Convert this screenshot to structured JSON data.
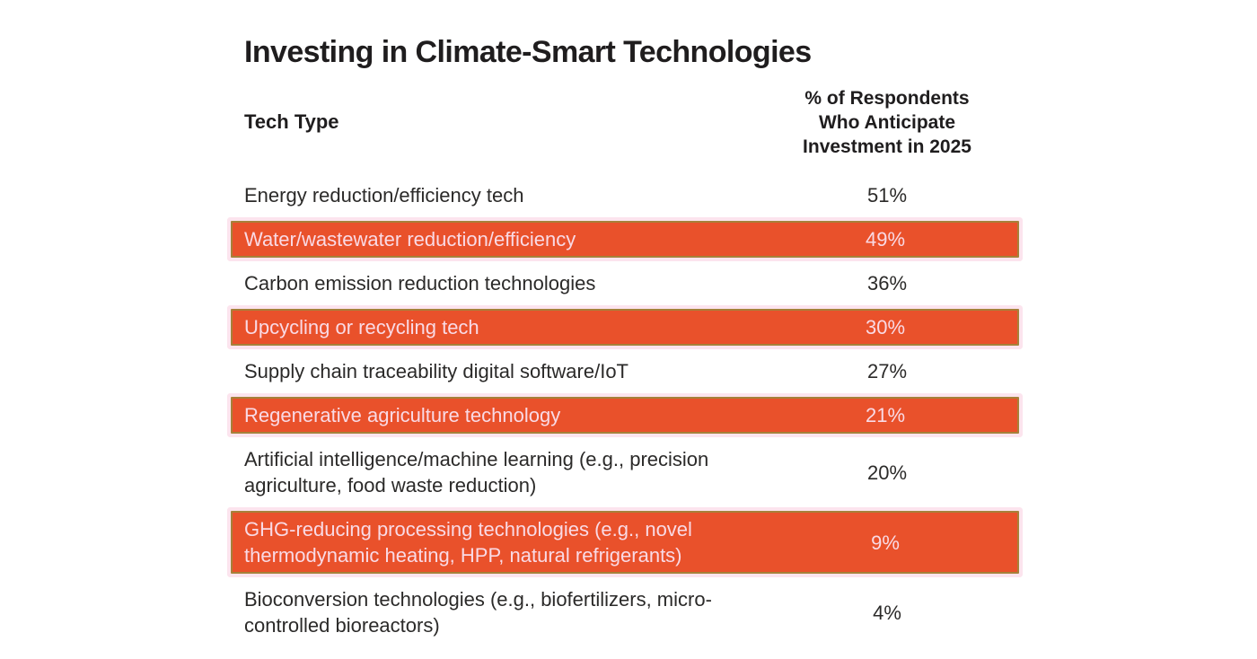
{
  "title": "Investing in Climate-Smart Technologies",
  "table": {
    "col1_header": "Tech Type",
    "col2_header": "% of Respondents\nWho Anticipate\nInvestment in 2025",
    "rows": [
      {
        "tech": "Energy reduction/efficiency tech",
        "pct": "51%"
      },
      {
        "tech": "Water/wastewater reduction/efficiency",
        "pct": "49%"
      },
      {
        "tech": "Carbon emission reduction technologies",
        "pct": "36%"
      },
      {
        "tech": "Upcycling or recycling tech",
        "pct": "30%"
      },
      {
        "tech": "Supply chain traceability digital software/IoT",
        "pct": "27%"
      },
      {
        "tech": "Regenerative agriculture technology",
        "pct": "21%"
      },
      {
        "tech": "Artificial intelligence/machine learning (e.g., precision agriculture, food waste reduction)",
        "pct": "20%"
      },
      {
        "tech": "GHG-reducing processing technologies (e.g., novel thermodynamic heating, HPP, natural refrigerants)",
        "pct": "9%"
      },
      {
        "tech": "Bioconversion technologies (e.g., biofertilizers, micro-controlled bioreactors)",
        "pct": "4%"
      }
    ]
  },
  "colors": {
    "highlight_fill": "#E9512B",
    "highlight_border": "#A6813A",
    "highlight_glow": "#FCE4EE",
    "highlight_text": "#F9DAE5",
    "body_text": "#2B2A29",
    "heading_text": "#1F1D1E",
    "background": "#FFFFFF"
  },
  "chart_data": {
    "type": "table",
    "title": "Investing in Climate-Smart Technologies",
    "columns": [
      "Tech Type",
      "% of Respondents Who Anticipate Investment in 2025"
    ],
    "categories": [
      "Energy reduction/efficiency tech",
      "Water/wastewater reduction/efficiency",
      "Carbon emission reduction technologies",
      "Upcycling or recycling tech",
      "Supply chain traceability digital software/IoT",
      "Regenerative agriculture technology",
      "Artificial intelligence/machine learning (e.g., precision agriculture, food waste reduction)",
      "GHG-reducing processing technologies (e.g., novel thermodynamic heating, HPP, natural refrigerants)",
      "Bioconversion technologies (e.g., biofertilizers, micro-controlled bioreactors)"
    ],
    "values": [
      51,
      49,
      36,
      30,
      27,
      21,
      20,
      9,
      4
    ],
    "unit": "%",
    "layout_hints": {
      "highlighted_row_indices": [
        1,
        3,
        5,
        7
      ],
      "value_column_alignment": "center",
      "grid": false,
      "legend": false
    }
  }
}
